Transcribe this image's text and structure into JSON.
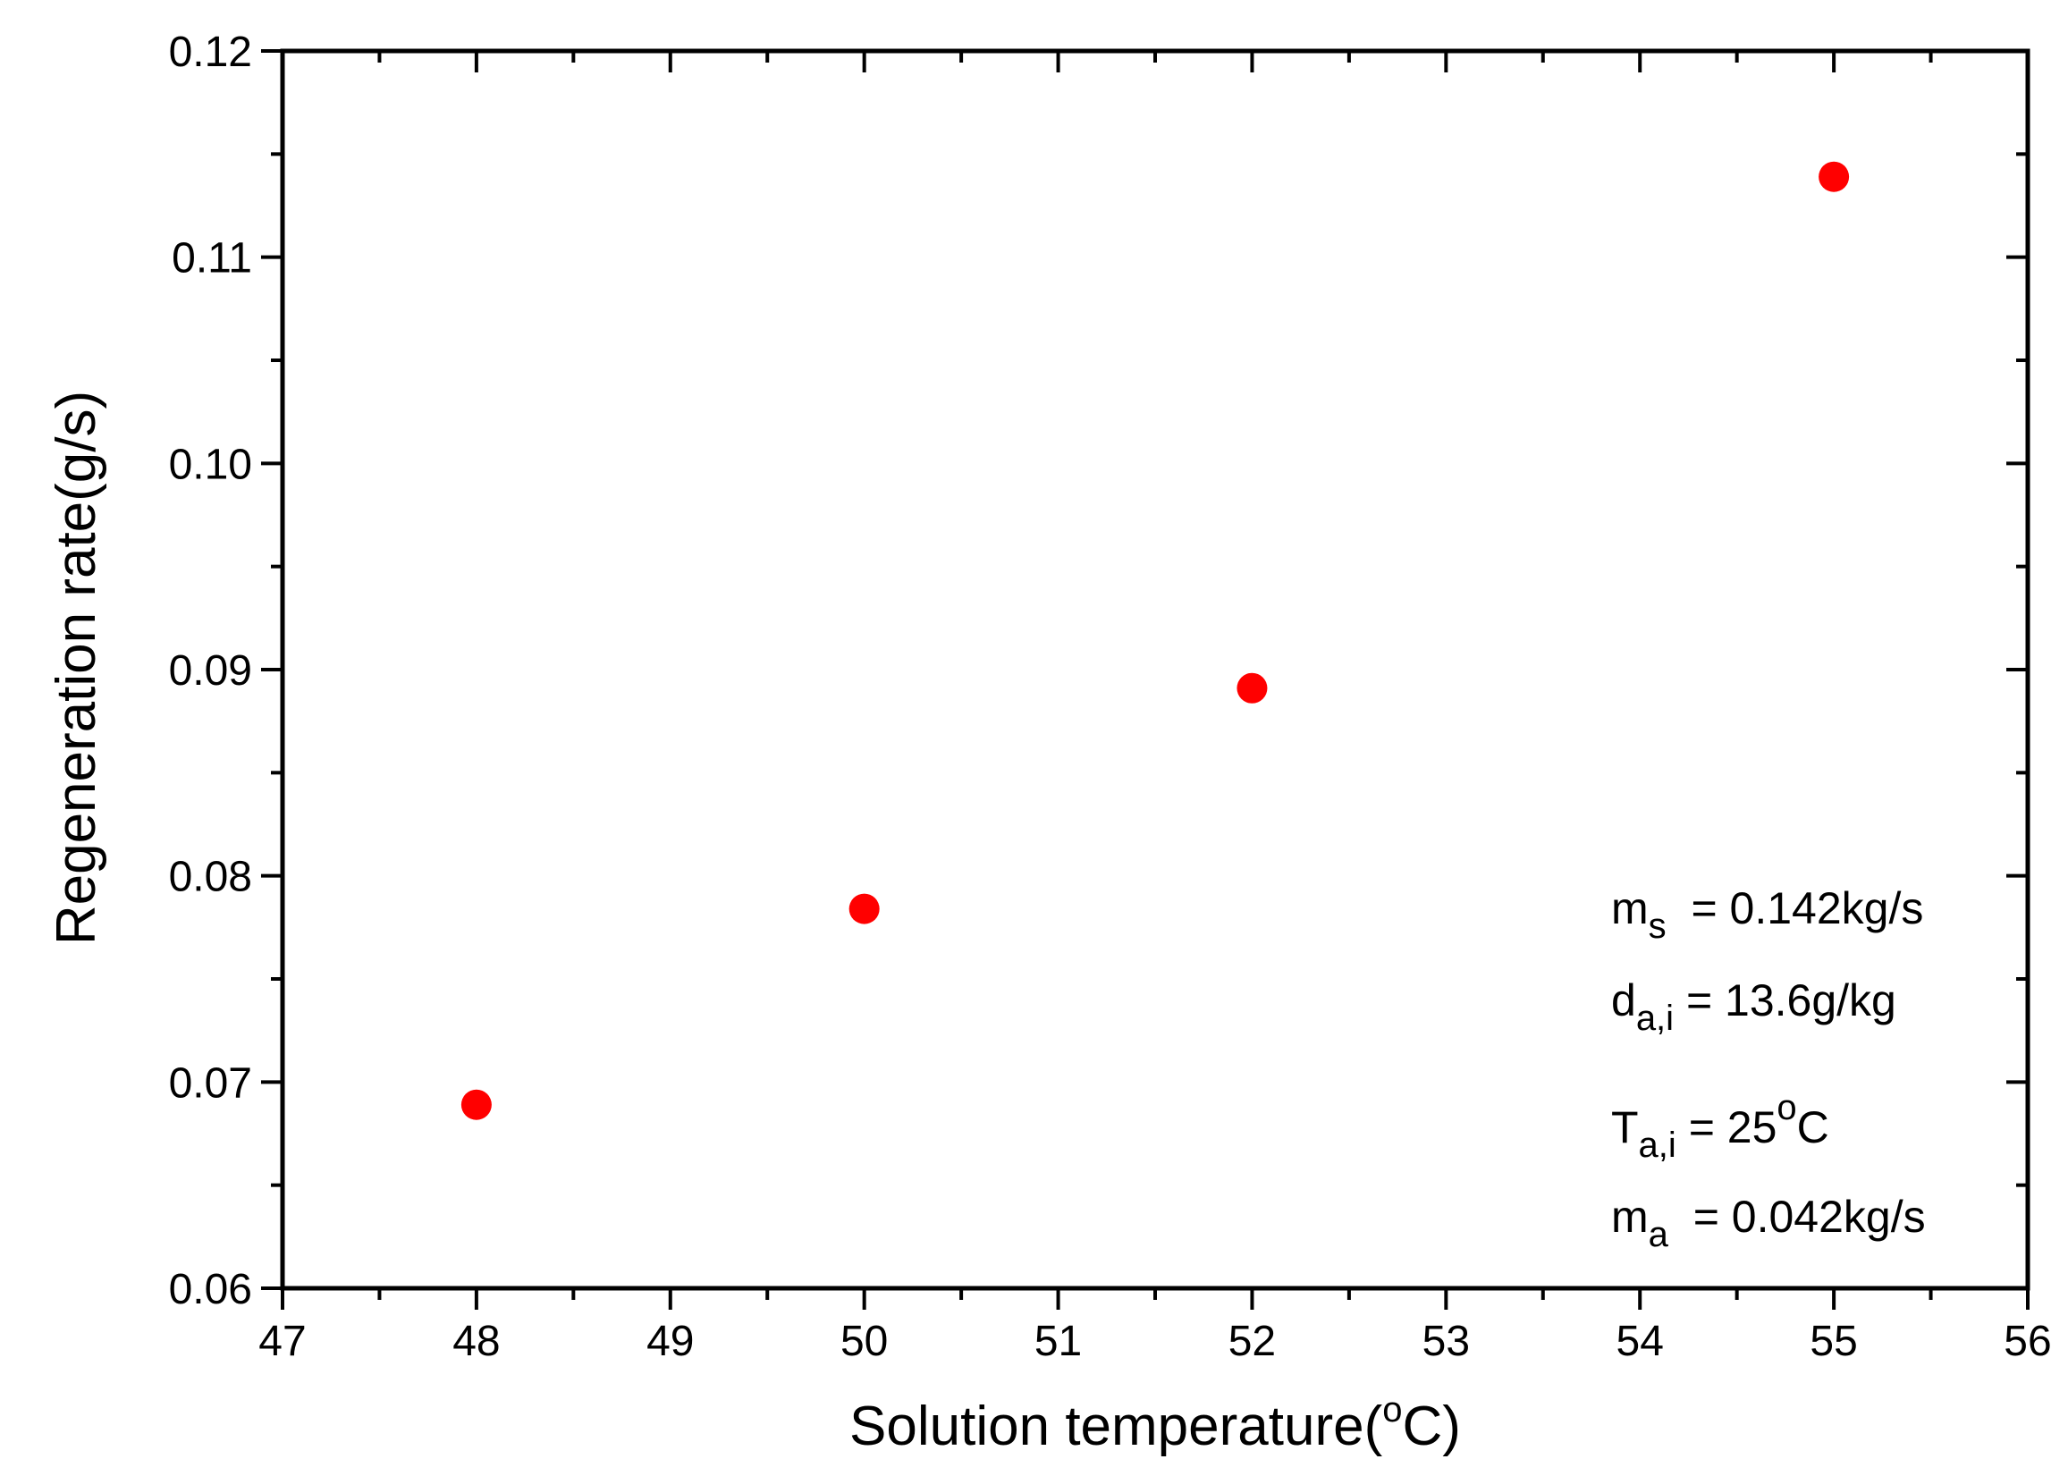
{
  "chart_data": {
    "type": "scatter",
    "xlabel": "Solution temperature(",
    "xlabel_sup": "o",
    "xlabel_end": "C)",
    "ylabel": "Regeneration rate(g/s)",
    "xlim": [
      47,
      56
    ],
    "ylim": [
      0.06,
      0.12
    ],
    "x_ticks": [
      "47",
      "48",
      "49",
      "50",
      "51",
      "52",
      "53",
      "54",
      "55",
      "56"
    ],
    "y_ticks": [
      "0.06",
      "0.07",
      "0.08",
      "0.09",
      "0.10",
      "0.11",
      "0.12"
    ],
    "grid": false,
    "marker_color": "#ff0000",
    "series": [
      {
        "x": [
          48,
          50,
          52,
          55
        ],
        "y": [
          0.0689,
          0.0784,
          0.0891,
          0.1139
        ]
      }
    ],
    "annotations": [
      {
        "main": "m",
        "sub": "s",
        "tail": "  = 0.142kg/s"
      },
      {
        "main": "d",
        "sub": "a,i",
        "tail": " = 13.6g/kg"
      },
      {
        "main": "T",
        "sub": "a,i",
        "tail": " = 25",
        "sup": "o",
        "tail2": "C"
      },
      {
        "main": "m",
        "sub": "a",
        "tail": "  = 0.042kg/s"
      }
    ]
  }
}
